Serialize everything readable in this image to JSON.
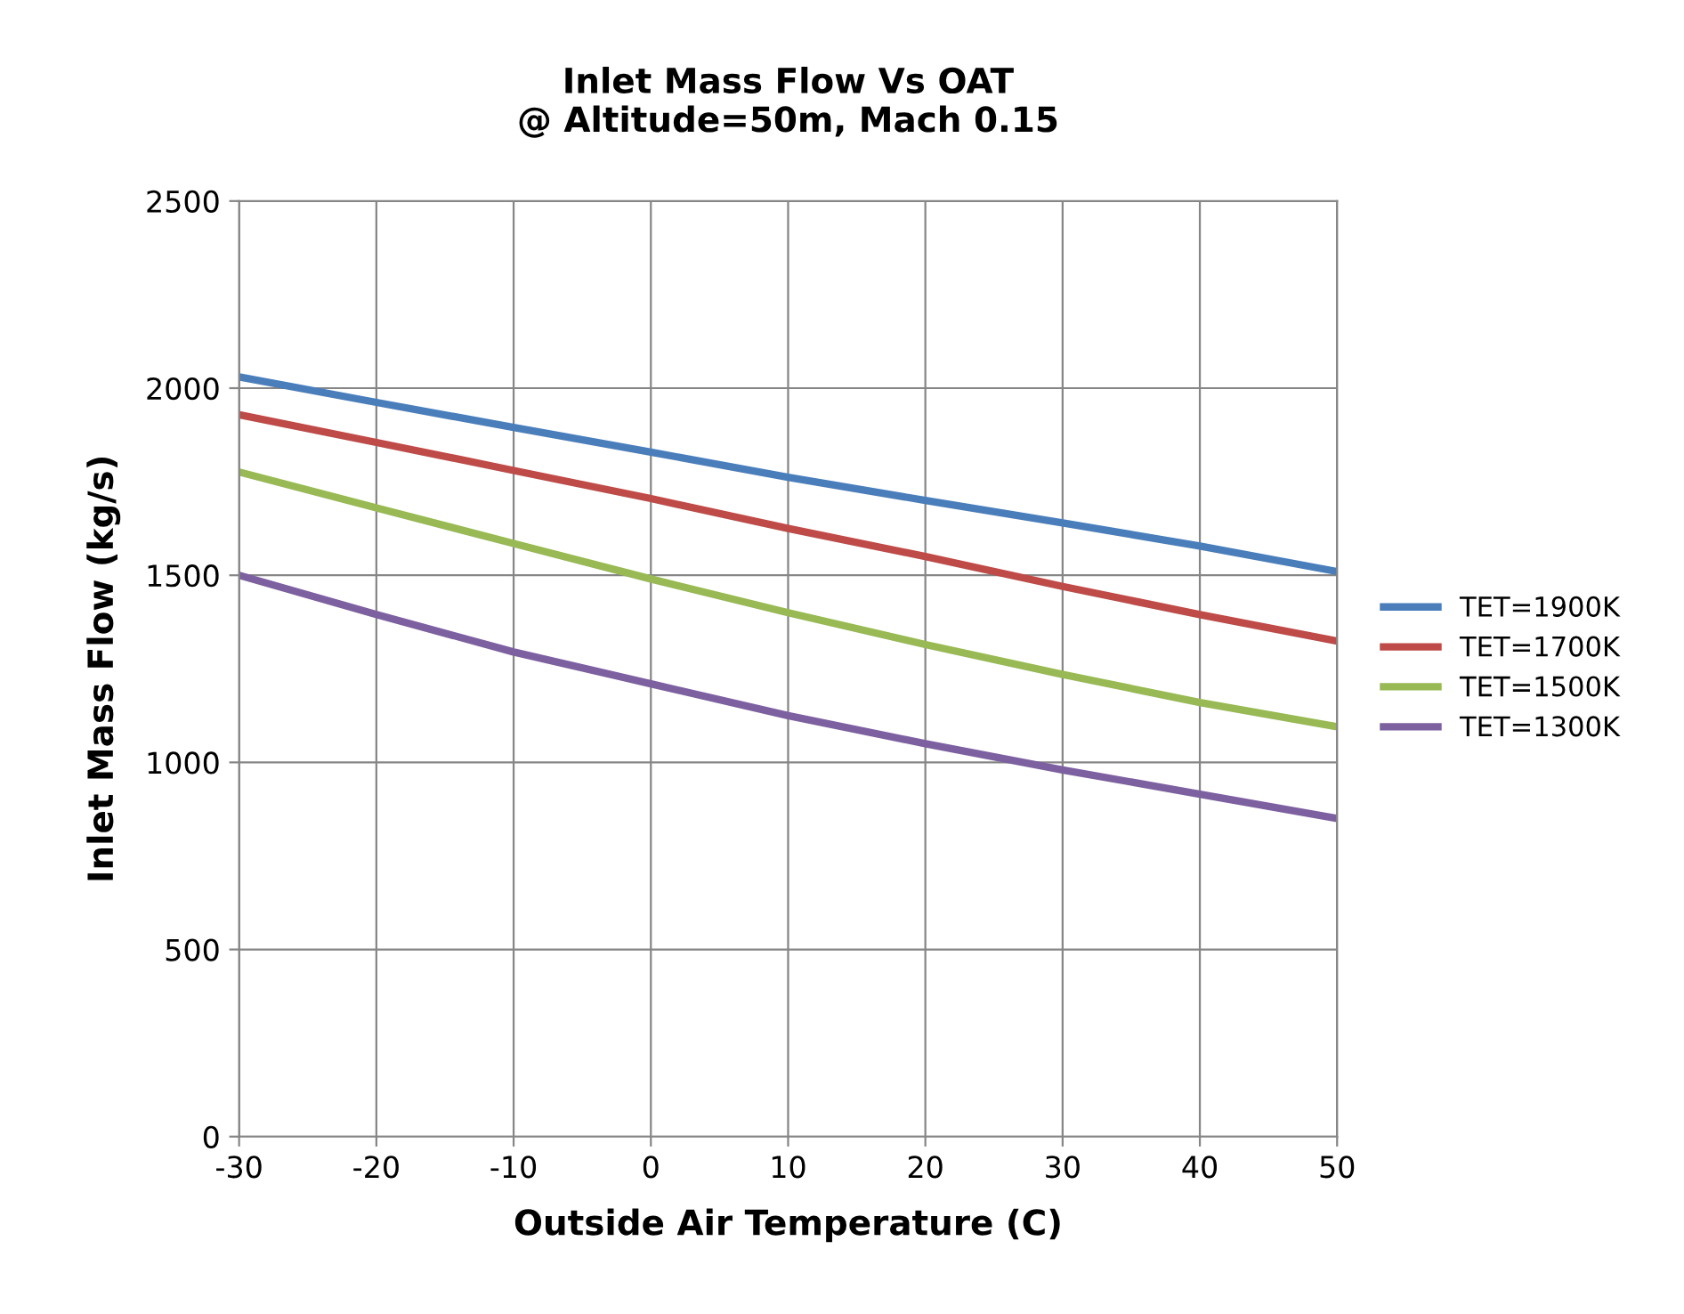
{
  "chart_data": {
    "type": "line",
    "title": "Inlet Mass Flow Vs OAT\n@ Altitude=50m, Mach 0.15",
    "xlabel": "Outside Air Temperature (C)",
    "ylabel": "Inlet Mass Flow (kg/s)",
    "x": [
      -30,
      -20,
      -10,
      0,
      10,
      20,
      30,
      40,
      50
    ],
    "series": [
      {
        "name": "TET=1900K",
        "color": "#4a7ebb",
        "values": [
          2030,
          1962,
          1895,
          1829,
          1762,
          1700,
          1640,
          1578,
          1510
        ]
      },
      {
        "name": "TET=1700K",
        "color": "#be4b48",
        "values": [
          1929,
          1855,
          1780,
          1705,
          1625,
          1550,
          1470,
          1395,
          1324
        ]
      },
      {
        "name": "TET=1500K",
        "color": "#98b954",
        "values": [
          1776,
          1680,
          1585,
          1490,
          1400,
          1315,
          1235,
          1160,
          1095
        ]
      },
      {
        "name": "TET=1300K",
        "color": "#7d60a0",
        "values": [
          1500,
          1395,
          1295,
          1210,
          1125,
          1050,
          980,
          915,
          850
        ]
      }
    ],
    "xlim": [
      -30,
      50
    ],
    "xticks": [
      -30,
      -20,
      -10,
      0,
      10,
      20,
      30,
      40,
      50
    ],
    "ylim": [
      0,
      2500
    ],
    "yticks": [
      0,
      500,
      1000,
      1500,
      2000,
      2500
    ],
    "grid": true,
    "legend": "right",
    "marker": "none",
    "line_style": "solid"
  }
}
